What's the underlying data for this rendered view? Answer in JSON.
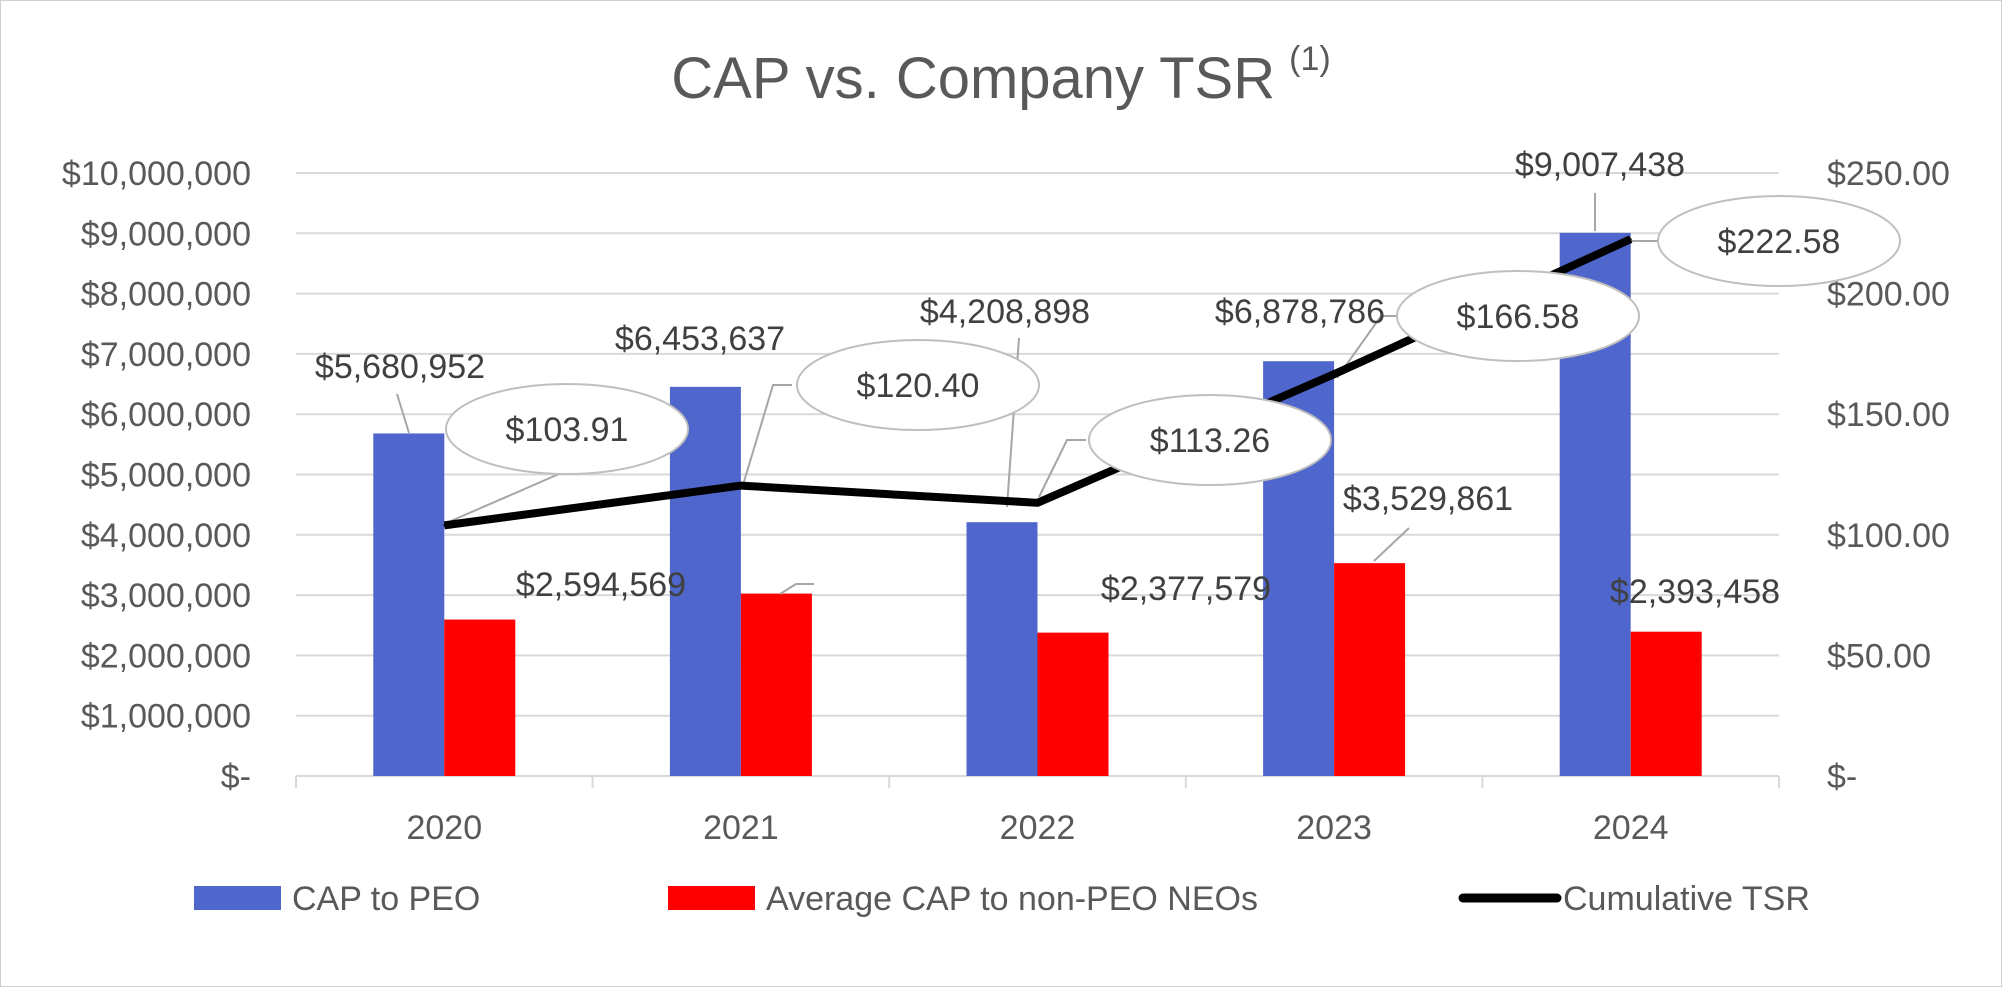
{
  "chart_data": {
    "type": "bar",
    "title": "CAP vs. Company TSR",
    "title_superscript": "(1)",
    "categories": [
      "2020",
      "2021",
      "2022",
      "2023",
      "2024"
    ],
    "series": [
      {
        "name": "CAP to PEO",
        "kind": "bar",
        "axis": "left",
        "color": "#4f67cc",
        "values": [
          5680952,
          6453637,
          4208898,
          6878786,
          9007438
        ],
        "labels": [
          "$5,680,952",
          "$6,453,637",
          "$4,208,898",
          "$6,878,786",
          "$9,007,438"
        ]
      },
      {
        "name": "Average CAP to non-PEO NEOs",
        "kind": "bar",
        "axis": "left",
        "color": "#ff0000",
        "values": [
          2594569,
          3025000,
          2377579,
          3529861,
          2393458
        ],
        "labels": [
          "$2,594,569",
          "",
          "$2,377,579",
          "$3,529,861",
          "$2,393,458"
        ]
      },
      {
        "name": "Cumulative TSR",
        "kind": "line",
        "axis": "right",
        "color": "#000000",
        "values": [
          103.91,
          120.4,
          113.26,
          166.58,
          222.58
        ],
        "labels": [
          "$103.91",
          "$120.40",
          "$113.26",
          "$166.58",
          "$222.58"
        ]
      }
    ],
    "y_left": {
      "min": 0,
      "max": 10000000,
      "ticks": [
        "$-",
        "$1,000,000",
        "$2,000,000",
        "$3,000,000",
        "$4,000,000",
        "$5,000,000",
        "$6,000,000",
        "$7,000,000",
        "$8,000,000",
        "$9,000,000",
        "$10,000,000"
      ]
    },
    "y_right": {
      "min": 0,
      "max": 250,
      "ticks": [
        "$-",
        "$50.00",
        "$100.00",
        "$150.00",
        "$200.00",
        "$250.00"
      ]
    },
    "grid": true,
    "legend_position": "bottom"
  }
}
